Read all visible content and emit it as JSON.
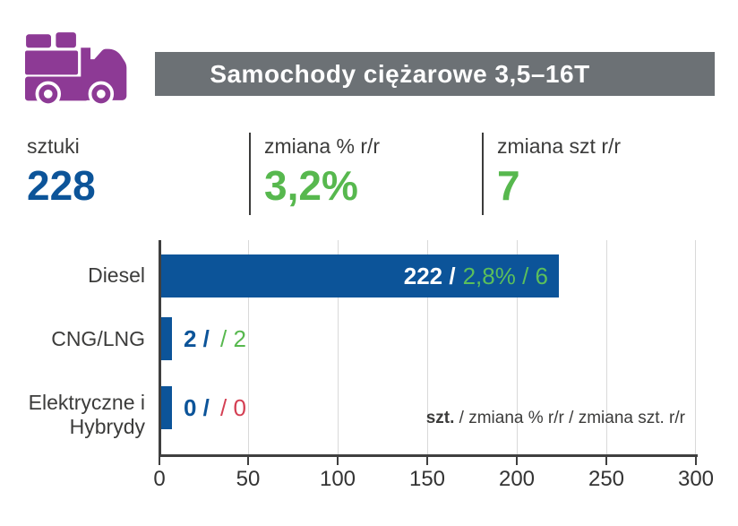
{
  "header": {
    "title": "Samochody ciężarowe 3,5–16T",
    "icon": "truck-icon"
  },
  "stats": [
    {
      "label": "sztuki",
      "value": "228"
    },
    {
      "label": "zmiana % r/r",
      "value": "3,2%"
    },
    {
      "label": "zmiana szt r/r",
      "value": "7"
    }
  ],
  "chart_data": {
    "type": "bar",
    "orientation": "horizontal",
    "categories": [
      "Diesel",
      "CNG/LNG",
      "Elektryczne i Hybrydy"
    ],
    "xlim": [
      0,
      300
    ],
    "x_ticks": [
      "0",
      "50",
      "100",
      "150",
      "200",
      "250",
      "300"
    ],
    "grid": true,
    "series": [
      {
        "name": "szt.",
        "values": [
          222,
          2,
          0
        ]
      },
      {
        "name": "zmiana % r/r",
        "values": [
          "2,8%",
          null,
          null
        ]
      },
      {
        "name": "zmiana szt. r/r",
        "values": [
          6,
          2,
          0
        ]
      }
    ],
    "rows": [
      {
        "category": "Diesel",
        "value": 222,
        "label_value": "222 /",
        "label_change": "2,8% / 6",
        "change_color": "#5bbf5b"
      },
      {
        "category": "CNG/LNG",
        "value": 2,
        "label_value": "2 /",
        "label_change": "/ 2",
        "change_color": "#57b84e"
      },
      {
        "category": "Elektryczne i Hybrydy",
        "value": 0,
        "label_value": "0 /",
        "label_change": "/ 0",
        "change_color": "#d43f53"
      }
    ],
    "legend": {
      "prefix": "szt.",
      "rest": " / zmiana % r/r / zmiana szt. r/r"
    },
    "legend_position": "bottom-right"
  },
  "colors": {
    "bar_blue": "#0c5499",
    "green": "#57b84e",
    "red": "#d43f53",
    "header_gray": "#6c7175",
    "truck_purple": "#8d3a95",
    "axis": "#3f3f3f",
    "gridline": "#d9d9d9"
  }
}
